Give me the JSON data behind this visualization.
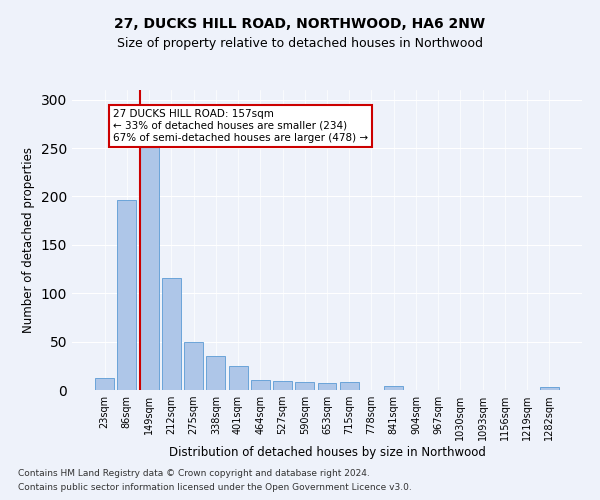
{
  "title": "27, DUCKS HILL ROAD, NORTHWOOD, HA6 2NW",
  "subtitle": "Size of property relative to detached houses in Northwood",
  "xlabel": "Distribution of detached houses by size in Northwood",
  "ylabel": "Number of detached properties",
  "categories": [
    "23sqm",
    "86sqm",
    "149sqm",
    "212sqm",
    "275sqm",
    "338sqm",
    "401sqm",
    "464sqm",
    "527sqm",
    "590sqm",
    "653sqm",
    "715sqm",
    "778sqm",
    "841sqm",
    "904sqm",
    "967sqm",
    "1030sqm",
    "1093sqm",
    "1156sqm",
    "1219sqm",
    "1282sqm"
  ],
  "values": [
    12,
    196,
    251,
    116,
    50,
    35,
    25,
    10,
    9,
    8,
    7,
    8,
    0,
    4,
    0,
    0,
    0,
    0,
    0,
    0,
    3
  ],
  "bar_color": "#aec6e8",
  "bar_edge_color": "#5b9bd5",
  "property_bin_index": 2,
  "annotation_title": "27 DUCKS HILL ROAD: 157sqm",
  "annotation_line1": "← 33% of detached houses are smaller (234)",
  "annotation_line2": "67% of semi-detached houses are larger (478) →",
  "vline_color": "#cc0000",
  "annotation_box_color": "#ffffff",
  "annotation_box_edge": "#cc0000",
  "footer_line1": "Contains HM Land Registry data © Crown copyright and database right 2024.",
  "footer_line2": "Contains public sector information licensed under the Open Government Licence v3.0.",
  "background_color": "#eef2fa",
  "ylim": [
    0,
    310
  ],
  "title_fontsize": 10,
  "subtitle_fontsize": 9,
  "xlabel_fontsize": 8.5,
  "ylabel_fontsize": 8.5,
  "tick_fontsize": 7,
  "footer_fontsize": 6.5
}
